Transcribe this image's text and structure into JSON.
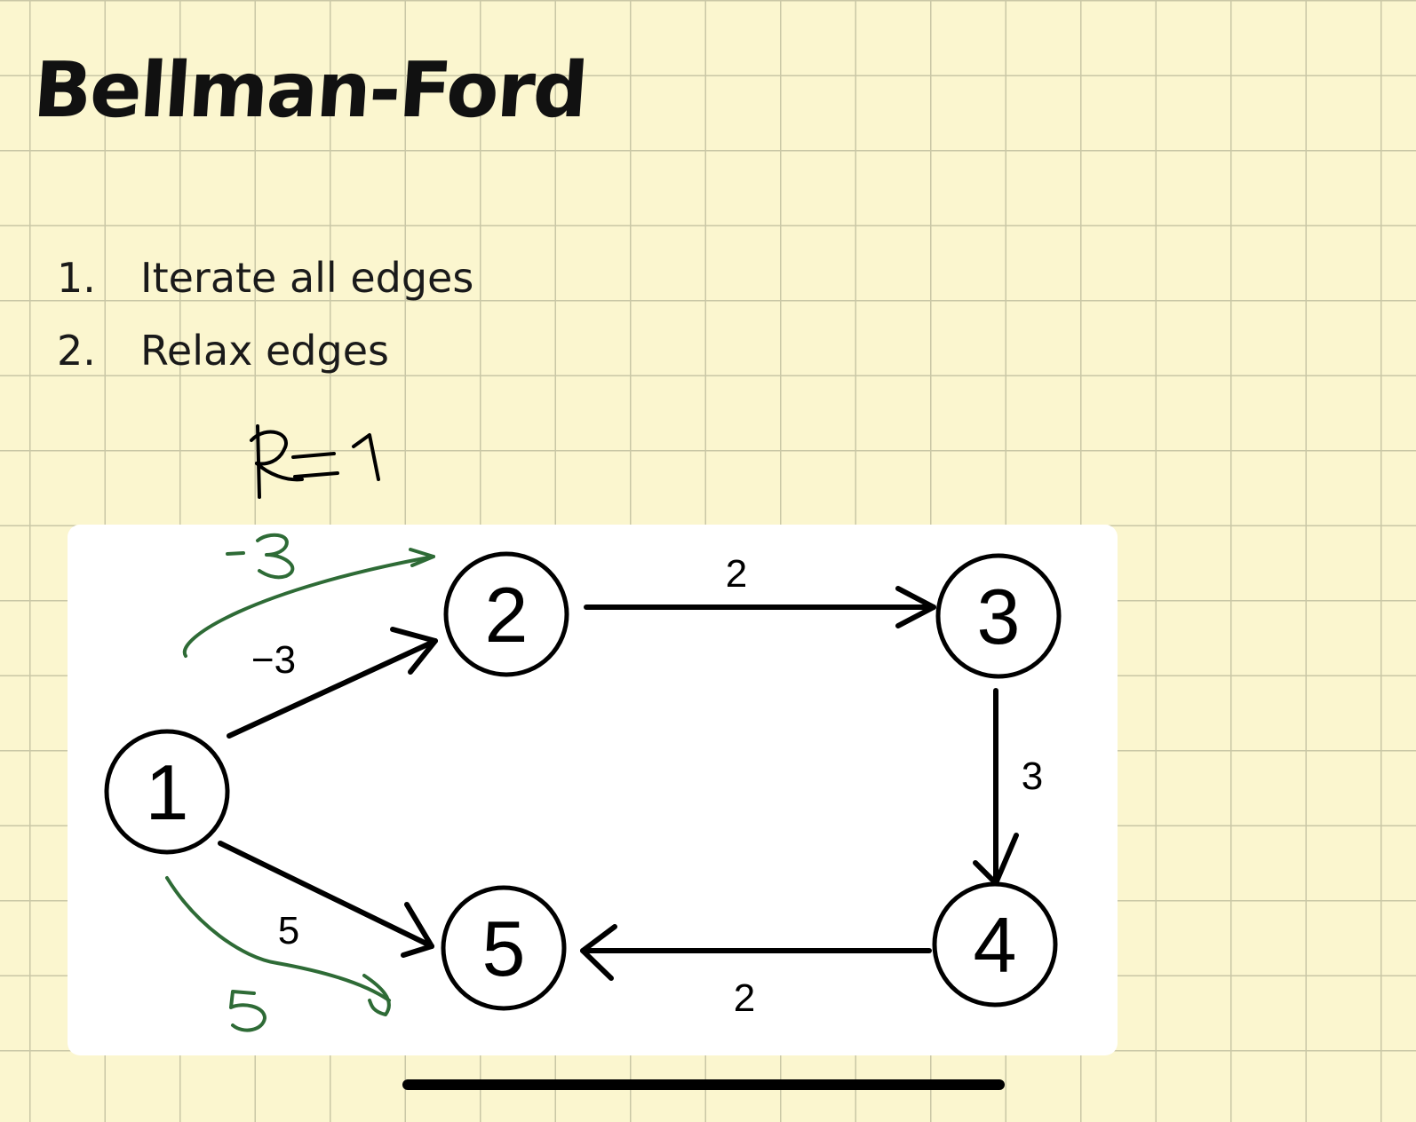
{
  "note": {
    "title": "Bellman-Ford",
    "steps": [
      {
        "number": "1.",
        "text": "Iterate all edges"
      },
      {
        "number": "2.",
        "text": "Relax edges"
      }
    ],
    "handwritten_iteration": "k=1"
  },
  "graph": {
    "nodes": [
      "1",
      "2",
      "3",
      "4",
      "5"
    ],
    "edges": [
      {
        "from": "1",
        "to": "2",
        "weight": "−3"
      },
      {
        "from": "2",
        "to": "3",
        "weight": "2"
      },
      {
        "from": "3",
        "to": "4",
        "weight": "3"
      },
      {
        "from": "4",
        "to": "5",
        "weight": "2"
      },
      {
        "from": "1",
        "to": "5",
        "weight": "5"
      }
    ],
    "handwritten_relaxations": [
      {
        "to": "2",
        "value": "-3"
      },
      {
        "to": "5",
        "value": "5"
      }
    ]
  },
  "colors": {
    "paper": "#fbf6cf",
    "grid": "#c9c7a6",
    "ink": "#000000",
    "annotation_ink": "#2e6b36"
  }
}
